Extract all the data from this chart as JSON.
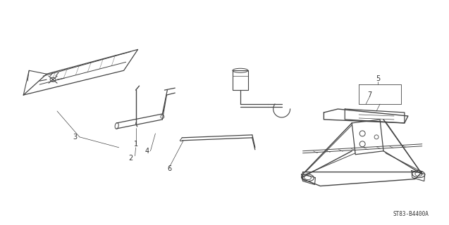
{
  "background_color": "#ffffff",
  "line_color": "#444444",
  "label_color": "#333333",
  "diagram_code": "ST83-B4400A",
  "figsize": [
    6.37,
    3.2
  ],
  "dpi": 100
}
